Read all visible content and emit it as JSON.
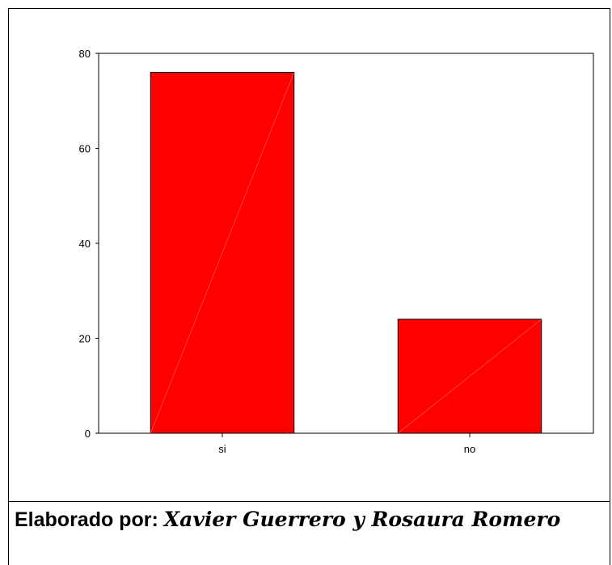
{
  "chart_data": {
    "type": "bar",
    "categories": [
      "si",
      "no"
    ],
    "values": [
      76,
      24
    ],
    "ylim": [
      0,
      80
    ],
    "yticks": [
      0,
      20,
      40,
      60,
      80
    ],
    "title": "",
    "xlabel": "",
    "ylabel": "",
    "bar_color": "#ff0000",
    "grid": false
  },
  "caption": {
    "label": "Elaborado por:",
    "authors": "Xavier Guerrero y Rosaura Romero"
  }
}
